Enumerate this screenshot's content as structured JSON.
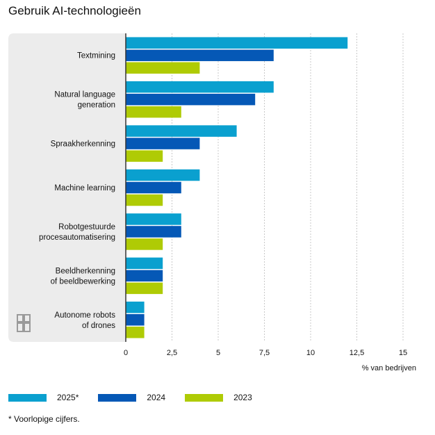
{
  "chart_data": {
    "type": "bar",
    "orientation": "horizontal",
    "title": "Gebruik AI-technologieën",
    "xlabel": "% van bedrijven",
    "ylabel": "",
    "xlim": [
      0,
      15
    ],
    "xticks": [
      0,
      2.5,
      5,
      7.5,
      10,
      12.5,
      15
    ],
    "xtick_labels": [
      "0",
      "2,5",
      "5",
      "7,5",
      "10",
      "12,5",
      "15"
    ],
    "categories": [
      [
        "Textmining"
      ],
      [
        "Natural language",
        "generation"
      ],
      [
        "Spraakherkenning"
      ],
      [
        "Machine learning"
      ],
      [
        "Robotgestuurde",
        "procesautomatisering"
      ],
      [
        "Beeldherkenning",
        "of beeldbewerking"
      ],
      [
        "Autonome robots",
        "of drones"
      ]
    ],
    "series": [
      {
        "name": "2025*",
        "color": "#0aa0cf",
        "values": [
          12,
          8,
          6,
          4,
          3,
          2,
          1
        ]
      },
      {
        "name": "2024",
        "color": "#0558b6",
        "values": [
          8,
          7,
          4,
          3,
          3,
          2,
          1
        ]
      },
      {
        "name": "2023",
        "color": "#afcb05",
        "values": [
          4,
          3,
          2,
          2,
          2,
          2,
          1
        ]
      }
    ],
    "footnote": "* Voorlopige cijfers."
  }
}
